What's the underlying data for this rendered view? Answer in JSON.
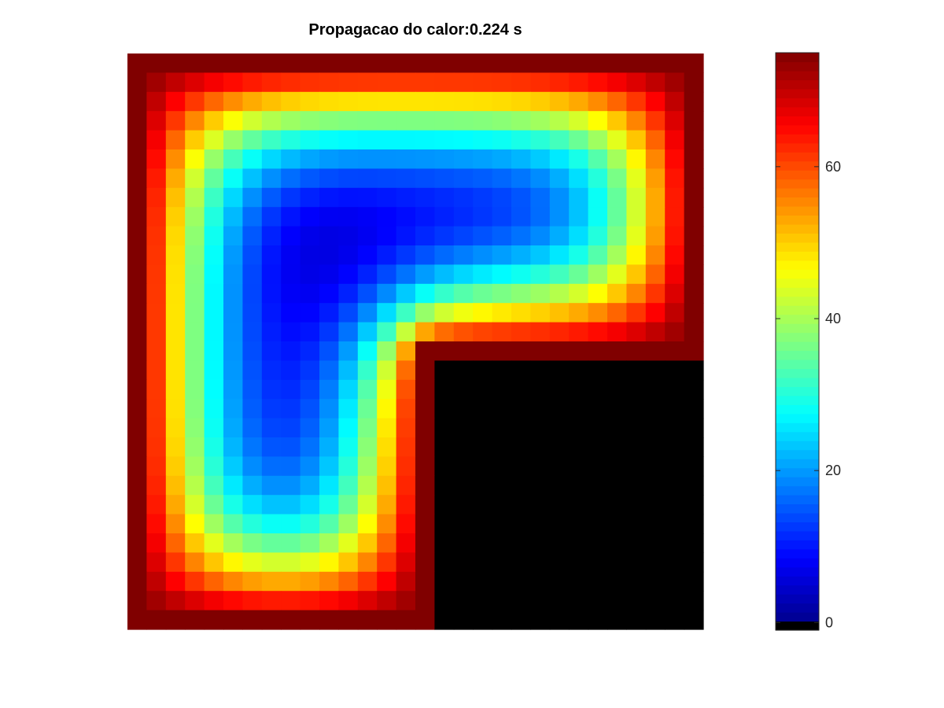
{
  "chart_data": {
    "type": "heatmap",
    "title": "Propagacao do calor:0.224 s",
    "xlabel": "",
    "ylabel": "",
    "colormap": "jet",
    "clim": [
      -1,
      75
    ],
    "colorbar": {
      "position": "right",
      "ticks": [
        0,
        20,
        40,
        60
      ],
      "tick_labels": [
        "0",
        "20",
        "40",
        "60"
      ]
    },
    "grid": {
      "cols": 30,
      "rows": 30,
      "hot_boundary_value": 75,
      "masked_value": -1,
      "masked_region": "bottom-right quadrant (lower 14 rows, right 14 columns)",
      "min_interior_value": 6
    },
    "colors": {
      "masked": "#000000",
      "boundary": "#800000"
    }
  }
}
